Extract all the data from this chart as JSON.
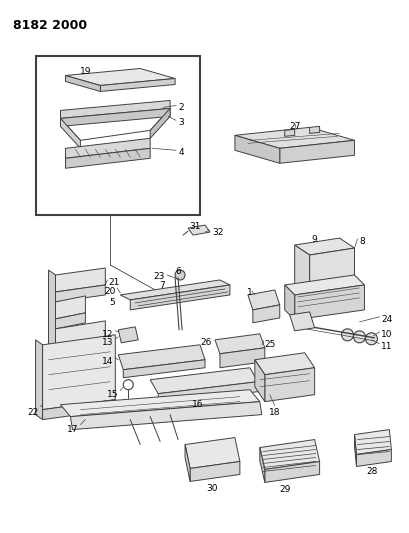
{
  "title": "8182 2000",
  "bg_color": "#ffffff",
  "fig_width": 4.1,
  "fig_height": 5.33,
  "dpi": 100,
  "line_color": "#404040",
  "label_fontsize": 6.5
}
